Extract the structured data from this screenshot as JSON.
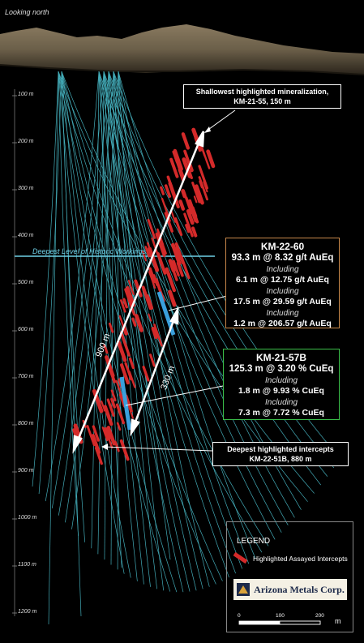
{
  "view_label": "Looking north",
  "depth_ticks": [
    "100 m",
    "200 m",
    "300 m",
    "400 m",
    "500 m",
    "600 m",
    "700 m",
    "800 m",
    "900 m",
    "1000 m",
    "1100 m",
    "1200 m"
  ],
  "historic_label": "Deepest Level of Historic Workings",
  "callout_top": [
    "Shallowest highlighted mineralization,",
    "KM-21-55, 150 m"
  ],
  "callout_bottom": [
    "Deepest highlighted intercepts",
    "KM-22-51B, 880 m"
  ],
  "arrow_long": "900 m",
  "arrow_short": "330 m",
  "box_km2260": {
    "hole": "KM-22-60",
    "main": "93.3 m @ 8.32 g/t AuEq",
    "including_word": "Including",
    "inc1": "6.1 m @ 12.75 g/t AuEq",
    "inc2": "17.5 m @ 29.59 g/t AuEq",
    "inc3": "1.2 m @ 206.57 g/t AuEq",
    "border_color": "#c8884a"
  },
  "box_km2157b": {
    "hole": "KM-21-57B",
    "main": "125.3 m @ 3.20 % CuEq",
    "including_word": "Including",
    "inc1": "1.8 m @ 9.93 % CuEq",
    "inc2": "7.3 m @ 7.72 % CuEq",
    "border_color": "#3bbf4a"
  },
  "legend": {
    "title": "LEGEND",
    "item": "Highlighted Assayed Intercepts",
    "logo_text": "Arizona Metals Corp.",
    "scale_ticks": [
      "0",
      "100",
      "200"
    ],
    "scale_unit": "m"
  },
  "colors": {
    "drill_trace": "#4fc9d8",
    "intercept": "#d42a2a",
    "highlight_hole": "#3aa0dc",
    "historic_line": "#6fcfe6"
  }
}
